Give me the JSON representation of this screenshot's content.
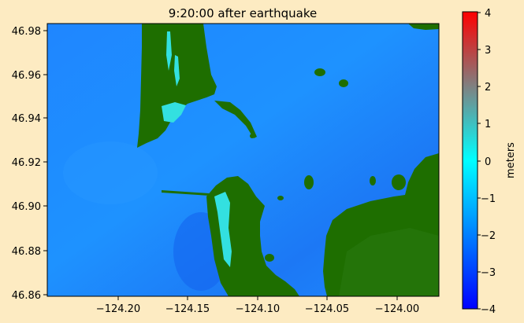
{
  "title": "9:20:00 after earthquake",
  "colorbar": {
    "label": "meters",
    "range": [
      -4,
      4
    ],
    "ticks": [
      "4",
      "3",
      "2",
      "1",
      "0",
      "−1",
      "−2",
      "−3",
      "−4"
    ],
    "colors": [
      "#0000ff",
      "#0080ff",
      "#00ffff",
      "#808080",
      "#ff0000"
    ]
  },
  "map": {
    "x_ticks": [
      "−124.20",
      "−124.15",
      "−124.10",
      "−124.05",
      "−124.00"
    ],
    "y_ticks": [
      "46.98",
      "46.96",
      "46.94",
      "46.92",
      "46.90",
      "46.88",
      "46.86"
    ],
    "land_color": "#1e6e00",
    "water_color": "#1a8cff",
    "shallow_color": "#33e0e0"
  }
}
